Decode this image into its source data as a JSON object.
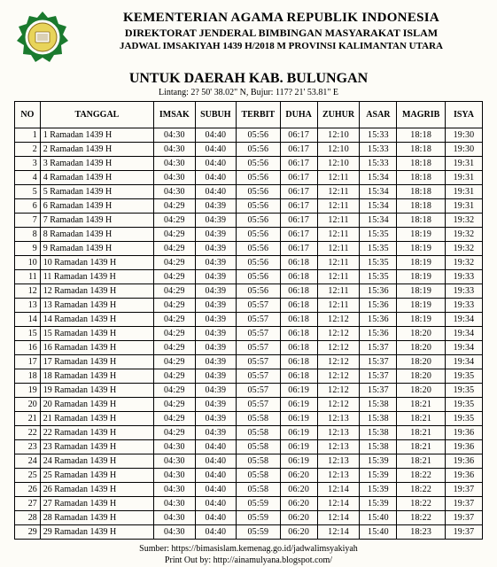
{
  "logo_colors": {
    "outer": "#1a7a2e",
    "inner": "#e8d45a",
    "accent": "#8a6a1a"
  },
  "header": {
    "line1": "KEMENTERIAN AGAMA REPUBLIK INDONESIA",
    "line2": "DIREKTORAT JENDERAL BIMBINGAN MASYARAKAT ISLAM",
    "line3": "JADWAL IMSAKIYAH 1439 H/2018 M PROVINSI KALIMANTAN UTARA"
  },
  "region": "UNTUK DAERAH KAB. BULUNGAN",
  "coords": "Lintang: 2? 50' 38.02\" N, Bujur: 117? 21' 53.81\" E",
  "columns": [
    "NO",
    "TANGGAL",
    "IMSAK",
    "SUBUH",
    "TERBIT",
    "DUHA",
    "ZUHUR",
    "ASAR",
    "MAGRIB",
    "ISYA"
  ],
  "rows": [
    [
      1,
      "1 Ramadan 1439 H",
      "04:30",
      "04:40",
      "05:56",
      "06:17",
      "12:10",
      "15:33",
      "18:18",
      "19:30"
    ],
    [
      2,
      "2 Ramadan 1439 H",
      "04:30",
      "04:40",
      "05:56",
      "06:17",
      "12:10",
      "15:33",
      "18:18",
      "19:30"
    ],
    [
      3,
      "3 Ramadan 1439 H",
      "04:30",
      "04:40",
      "05:56",
      "06:17",
      "12:10",
      "15:33",
      "18:18",
      "19:31"
    ],
    [
      4,
      "4 Ramadan 1439 H",
      "04:30",
      "04:40",
      "05:56",
      "06:17",
      "12:11",
      "15:34",
      "18:18",
      "19:31"
    ],
    [
      5,
      "5 Ramadan 1439 H",
      "04:30",
      "04:40",
      "05:56",
      "06:17",
      "12:11",
      "15:34",
      "18:18",
      "19:31"
    ],
    [
      6,
      "6 Ramadan 1439 H",
      "04:29",
      "04:39",
      "05:56",
      "06:17",
      "12:11",
      "15:34",
      "18:18",
      "19:31"
    ],
    [
      7,
      "7 Ramadan 1439 H",
      "04:29",
      "04:39",
      "05:56",
      "06:17",
      "12:11",
      "15:34",
      "18:18",
      "19:32"
    ],
    [
      8,
      "8 Ramadan 1439 H",
      "04:29",
      "04:39",
      "05:56",
      "06:17",
      "12:11",
      "15:35",
      "18:19",
      "19:32"
    ],
    [
      9,
      "9 Ramadan 1439 H",
      "04:29",
      "04:39",
      "05:56",
      "06:17",
      "12:11",
      "15:35",
      "18:19",
      "19:32"
    ],
    [
      10,
      "10 Ramadan 1439 H",
      "04:29",
      "04:39",
      "05:56",
      "06:18",
      "12:11",
      "15:35",
      "18:19",
      "19:32"
    ],
    [
      11,
      "11 Ramadan 1439 H",
      "04:29",
      "04:39",
      "05:56",
      "06:18",
      "12:11",
      "15:35",
      "18:19",
      "19:33"
    ],
    [
      12,
      "12 Ramadan 1439 H",
      "04:29",
      "04:39",
      "05:56",
      "06:18",
      "12:11",
      "15:36",
      "18:19",
      "19:33"
    ],
    [
      13,
      "13 Ramadan 1439 H",
      "04:29",
      "04:39",
      "05:57",
      "06:18",
      "12:11",
      "15:36",
      "18:19",
      "19:33"
    ],
    [
      14,
      "14 Ramadan 1439 H",
      "04:29",
      "04:39",
      "05:57",
      "06:18",
      "12:12",
      "15:36",
      "18:19",
      "19:34"
    ],
    [
      15,
      "15 Ramadan 1439 H",
      "04:29",
      "04:39",
      "05:57",
      "06:18",
      "12:12",
      "15:36",
      "18:20",
      "19:34"
    ],
    [
      16,
      "16 Ramadan 1439 H",
      "04:29",
      "04:39",
      "05:57",
      "06:18",
      "12:12",
      "15:37",
      "18:20",
      "19:34"
    ],
    [
      17,
      "17 Ramadan 1439 H",
      "04:29",
      "04:39",
      "05:57",
      "06:18",
      "12:12",
      "15:37",
      "18:20",
      "19:34"
    ],
    [
      18,
      "18 Ramadan 1439 H",
      "04:29",
      "04:39",
      "05:57",
      "06:18",
      "12:12",
      "15:37",
      "18:20",
      "19:35"
    ],
    [
      19,
      "19 Ramadan 1439 H",
      "04:29",
      "04:39",
      "05:57",
      "06:19",
      "12:12",
      "15:37",
      "18:20",
      "19:35"
    ],
    [
      20,
      "20 Ramadan 1439 H",
      "04:29",
      "04:39",
      "05:57",
      "06:19",
      "12:12",
      "15:38",
      "18:21",
      "19:35"
    ],
    [
      21,
      "21 Ramadan 1439 H",
      "04:29",
      "04:39",
      "05:58",
      "06:19",
      "12:13",
      "15:38",
      "18:21",
      "19:35"
    ],
    [
      22,
      "22 Ramadan 1439 H",
      "04:29",
      "04:39",
      "05:58",
      "06:19",
      "12:13",
      "15:38",
      "18:21",
      "19:36"
    ],
    [
      23,
      "23 Ramadan 1439 H",
      "04:30",
      "04:40",
      "05:58",
      "06:19",
      "12:13",
      "15:38",
      "18:21",
      "19:36"
    ],
    [
      24,
      "24 Ramadan 1439 H",
      "04:30",
      "04:40",
      "05:58",
      "06:19",
      "12:13",
      "15:39",
      "18:21",
      "19:36"
    ],
    [
      25,
      "25 Ramadan 1439 H",
      "04:30",
      "04:40",
      "05:58",
      "06:20",
      "12:13",
      "15:39",
      "18:22",
      "19:36"
    ],
    [
      26,
      "26 Ramadan 1439 H",
      "04:30",
      "04:40",
      "05:58",
      "06:20",
      "12:14",
      "15:39",
      "18:22",
      "19:37"
    ],
    [
      27,
      "27 Ramadan 1439 H",
      "04:30",
      "04:40",
      "05:59",
      "06:20",
      "12:14",
      "15:39",
      "18:22",
      "19:37"
    ],
    [
      28,
      "28 Ramadan 1439 H",
      "04:30",
      "04:40",
      "05:59",
      "06:20",
      "12:14",
      "15:40",
      "18:22",
      "19:37"
    ],
    [
      29,
      "29 Ramadan 1439 H",
      "04:30",
      "04:40",
      "05:59",
      "06:20",
      "12:14",
      "15:40",
      "18:23",
      "19:37"
    ]
  ],
  "footer": {
    "source": "Sumber: https://bimasislam.kemenag.go.id/jadwalimsyakiyah",
    "printout": "Print Out by: http://ainamulyana.blogspot.com/"
  },
  "col_widths": [
    "26px",
    "116px",
    "42px",
    "42px",
    "42px",
    "38px",
    "42px",
    "38px",
    "48px",
    "38px"
  ]
}
